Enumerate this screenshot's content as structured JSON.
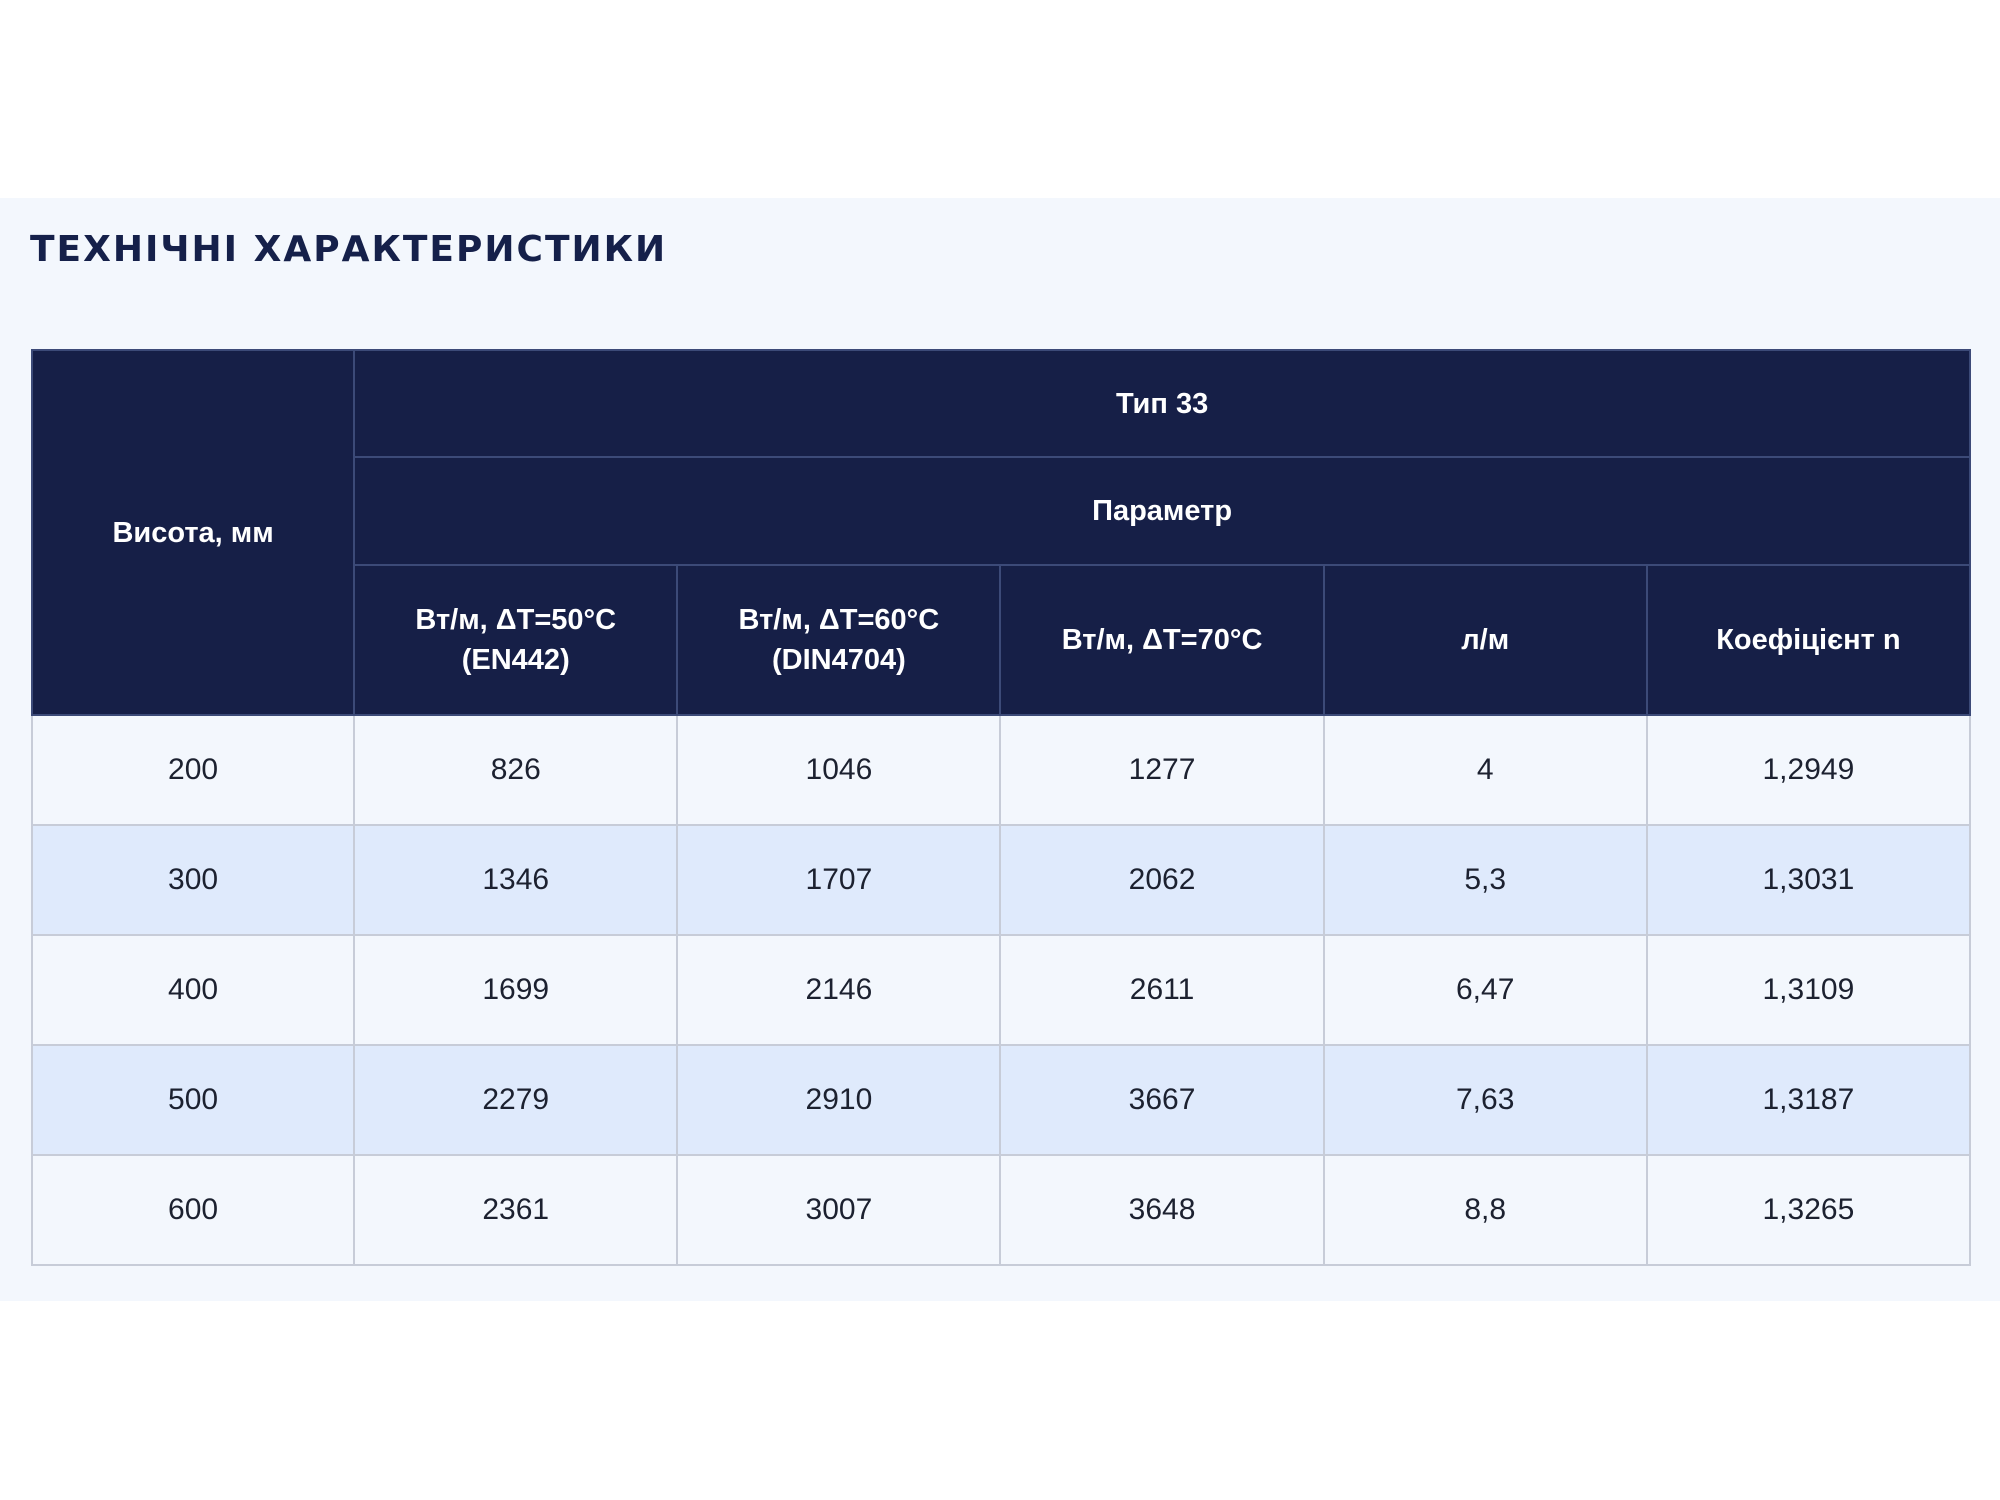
{
  "title": "ТЕХНІЧНІ ХАРАКТЕРИСТИКИ",
  "table": {
    "height_header": "Висота, мм",
    "type_header": "Тип 33",
    "param_header": "Параметр",
    "columns": [
      {
        "line1": "Вт/м, ΔT=50°C",
        "line2": "(EN442)"
      },
      {
        "line1": "Вт/м, ΔT=60°C",
        "line2": "(DIN4704)"
      },
      {
        "line1": "Вт/м, ΔT=70°C",
        "line2": ""
      },
      {
        "line1": "л/м",
        "line2": ""
      },
      {
        "line1": "Коефіцієнт n",
        "line2": ""
      }
    ],
    "rows": [
      {
        "height": "200",
        "values": [
          "826",
          "1046",
          "1277",
          "4",
          "1,2949"
        ]
      },
      {
        "height": "300",
        "values": [
          "1346",
          "1707",
          "2062",
          "5,3",
          "1,3031"
        ]
      },
      {
        "height": "400",
        "values": [
          "1699",
          "2146",
          "2611",
          "6,47",
          "1,3109"
        ]
      },
      {
        "height": "500",
        "values": [
          "2279",
          "2910",
          "3667",
          "7,63",
          "1,3187"
        ]
      },
      {
        "height": "600",
        "values": [
          "2361",
          "3007",
          "3648",
          "8,8",
          "1,3265"
        ]
      }
    ]
  },
  "colors": {
    "header_bg": "#161f47",
    "title_text": "#15204a",
    "row_light": "#f3f7fd",
    "row_blue": "#dfeafc"
  }
}
